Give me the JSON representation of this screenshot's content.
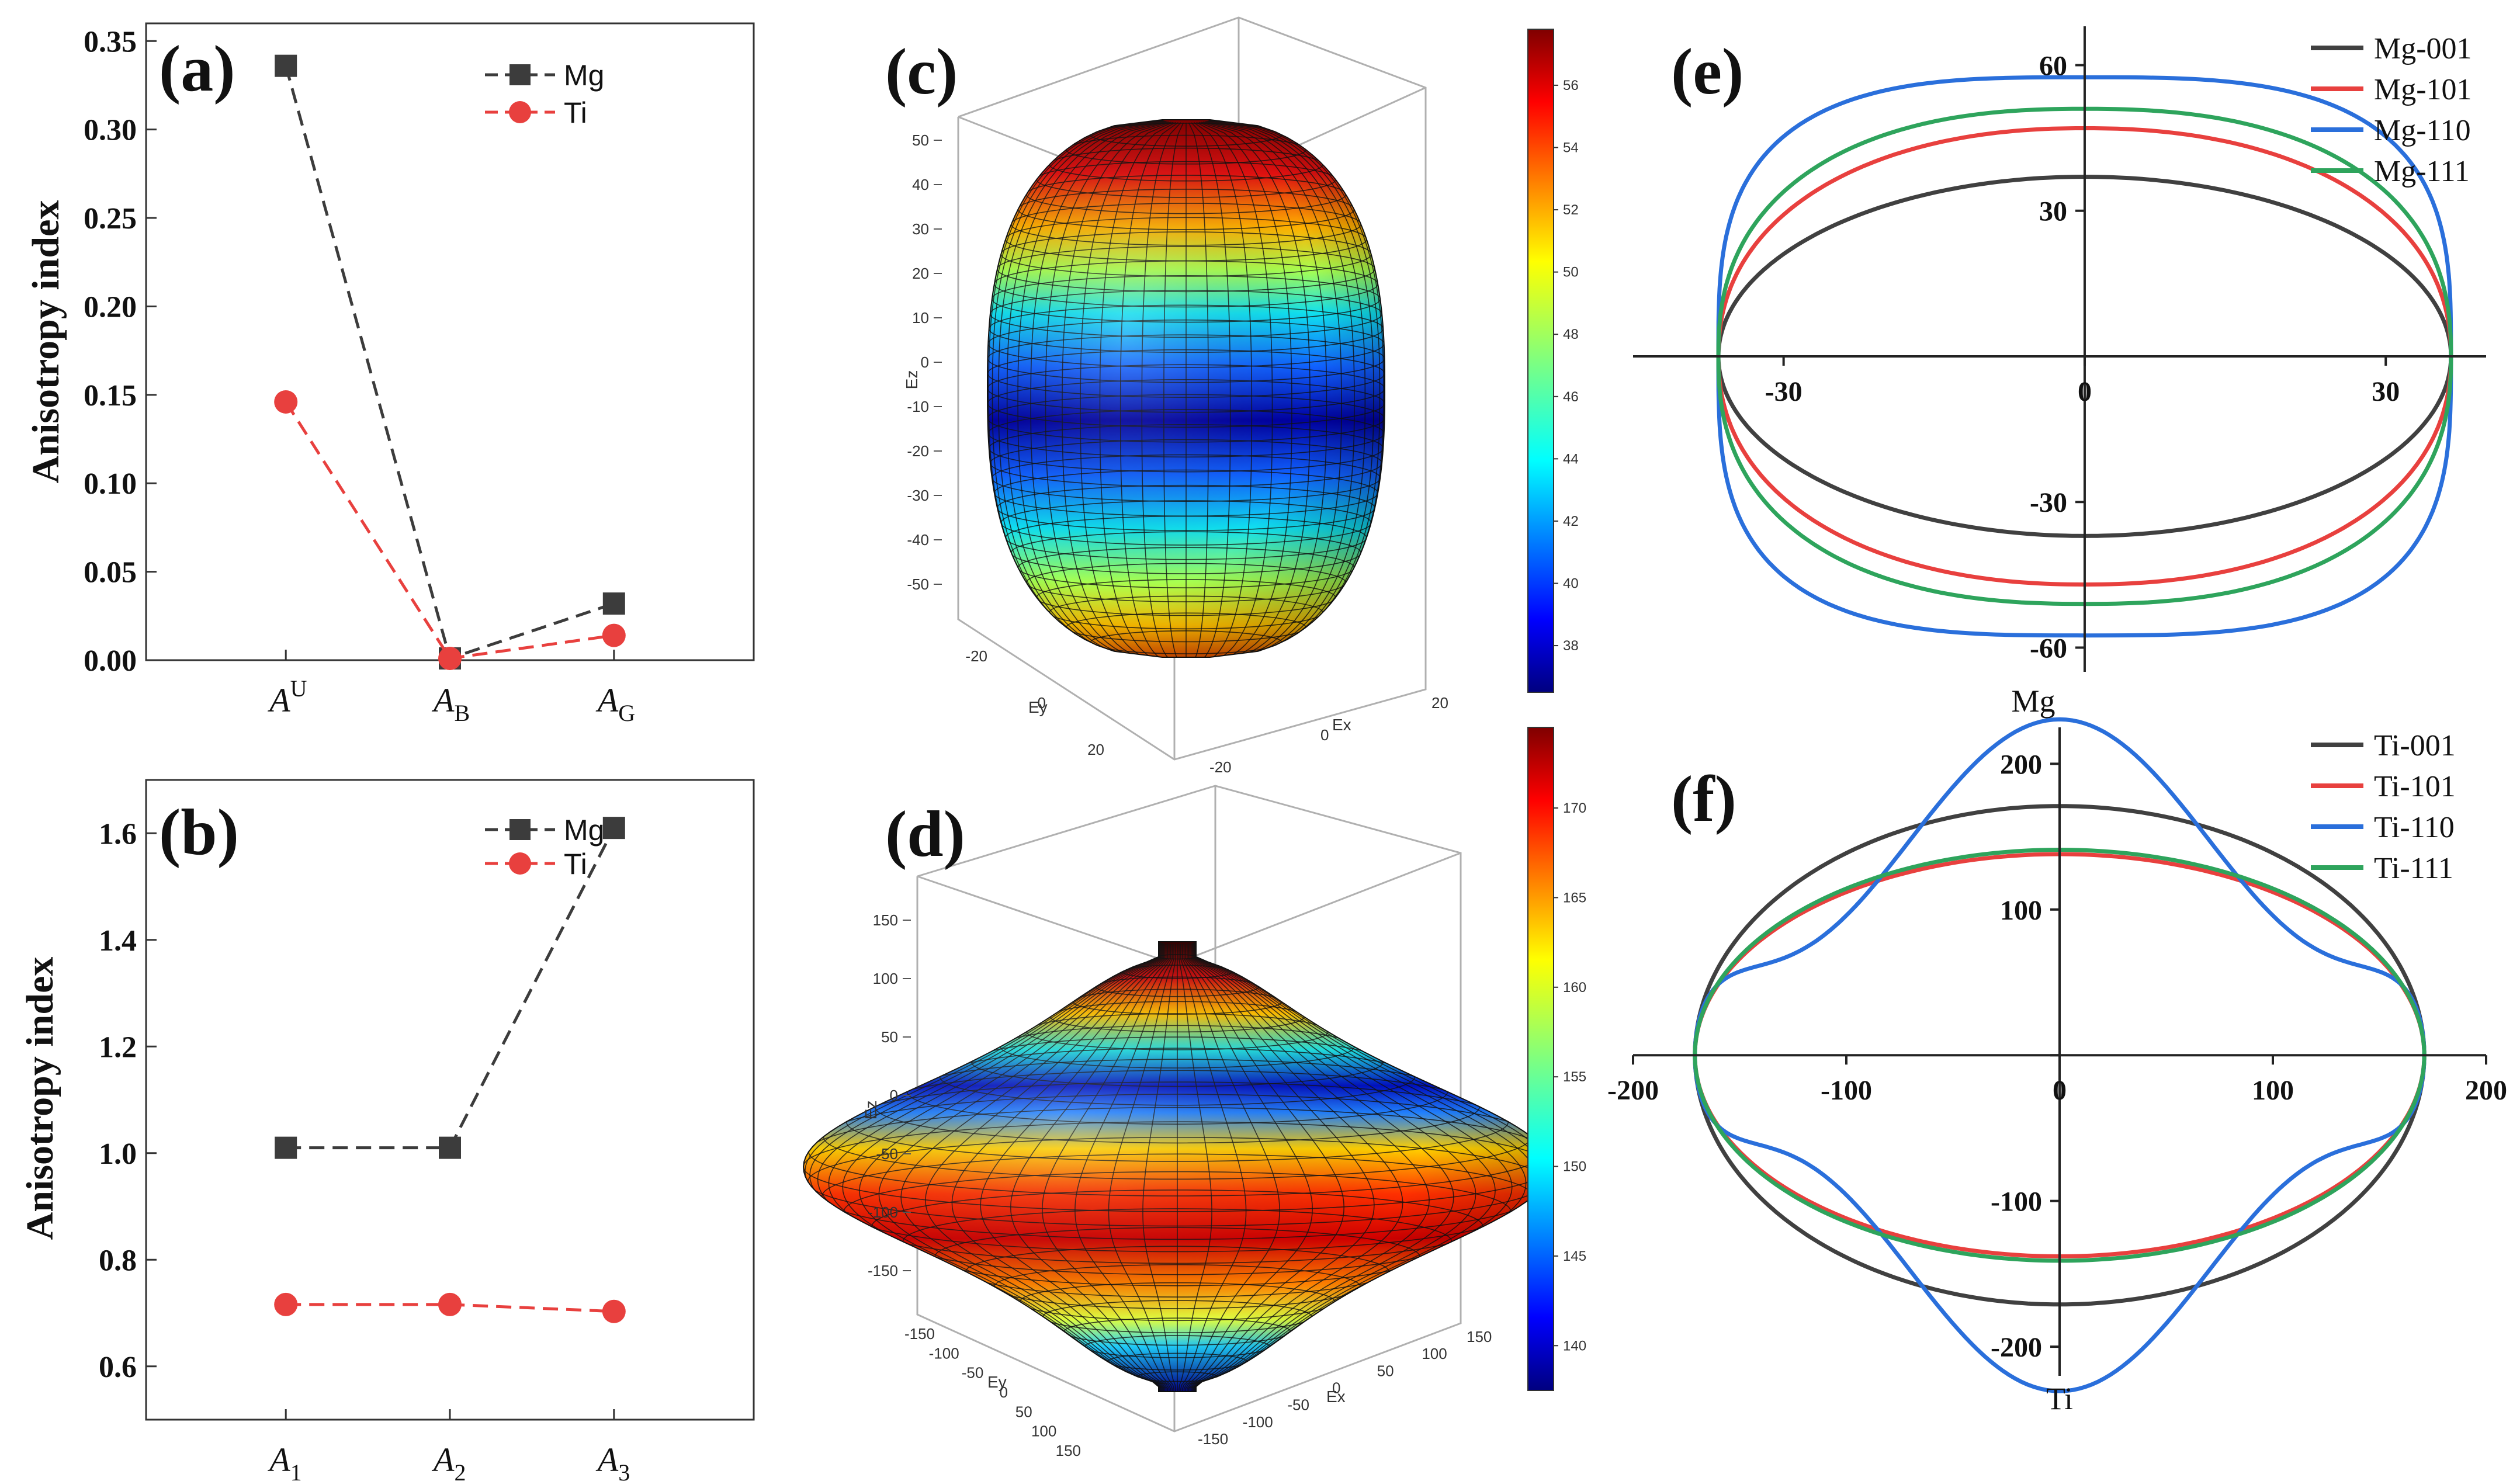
{
  "panels": {
    "a": {
      "letter": "(a)"
    },
    "b": {
      "letter": "(b)"
    },
    "c": {
      "letter": "(c)"
    },
    "d": {
      "letter": "(d)"
    },
    "e": {
      "letter": "(e)"
    },
    "f": {
      "letter": "(f)"
    }
  },
  "colors": {
    "mg_marker": "#3c3c3c",
    "ti_marker": "#e8403e",
    "dir_001": "#404040",
    "dir_101": "#e8403e",
    "dir_110": "#2a6fdb",
    "dir_111": "#2ea45c"
  },
  "chart_data": [
    {
      "panel": "a",
      "type": "line",
      "ylabel": "Anisotropy index",
      "categories": [
        "A^U",
        "A_B",
        "A_G"
      ],
      "category_labels": [
        {
          "main": "A",
          "script": "U",
          "kind": "sup"
        },
        {
          "main": "A",
          "script": "B",
          "kind": "sub"
        },
        {
          "main": "A",
          "script": "G",
          "kind": "sub"
        }
      ],
      "ylim": [
        0,
        0.36
      ],
      "yticks": [
        "0.00",
        "0.05",
        "0.10",
        "0.15",
        "0.20",
        "0.25",
        "0.30",
        "0.35"
      ],
      "ytick_values": [
        0,
        0.05,
        0.1,
        0.15,
        0.2,
        0.25,
        0.3,
        0.35
      ],
      "legend_position": "top-center",
      "series": [
        {
          "name": "Mg",
          "marker": "square",
          "values": [
            0.336,
            0.001,
            0.032
          ]
        },
        {
          "name": "Ti",
          "marker": "circle",
          "values": [
            0.146,
            0.001,
            0.014
          ]
        }
      ]
    },
    {
      "panel": "b",
      "type": "line",
      "ylabel": "Anisotropy index",
      "categories": [
        "A_1",
        "A_2",
        "A_3"
      ],
      "category_labels": [
        {
          "main": "A",
          "script": "1",
          "kind": "sub"
        },
        {
          "main": "A",
          "script": "2",
          "kind": "sub"
        },
        {
          "main": "A",
          "script": "3",
          "kind": "sub"
        }
      ],
      "ylim": [
        0.5,
        1.7
      ],
      "yticks": [
        "0.6",
        "0.8",
        "1.0",
        "1.2",
        "1.4",
        "1.6"
      ],
      "ytick_values": [
        0.6,
        0.8,
        1.0,
        1.2,
        1.4,
        1.6
      ],
      "legend_position": "top-center",
      "series": [
        {
          "name": "Mg",
          "marker": "square",
          "values": [
            1.01,
            1.01,
            1.61
          ]
        },
        {
          "name": "Ti",
          "marker": "circle",
          "values": [
            0.716,
            0.716,
            0.703
          ]
        }
      ]
    },
    {
      "panel": "c",
      "type": "surface3d",
      "axis_labels": {
        "x": "Ex",
        "y": "Ey",
        "z": "Ez"
      },
      "z_ticks": [
        "50",
        "40",
        "30",
        "20",
        "10",
        "0",
        "-10",
        "-20",
        "-30",
        "-40",
        "-50"
      ],
      "z_tick_values": [
        50,
        40,
        30,
        20,
        10,
        0,
        -10,
        -20,
        -30,
        -40,
        -50
      ],
      "x_ticks": [
        "-20",
        "0",
        "20"
      ],
      "y_ticks": [
        "-20",
        "0",
        "20"
      ],
      "colorbar": {
        "ticks": [
          "56",
          "54",
          "52",
          "50",
          "48",
          "46",
          "44",
          "42",
          "40",
          "38"
        ],
        "tick_values": [
          56,
          54,
          52,
          50,
          48,
          46,
          44,
          42,
          40,
          38
        ],
        "range": [
          36.5,
          57.8
        ]
      },
      "extent": {
        "radius_max": 36,
        "z_max": 55
      }
    },
    {
      "panel": "d",
      "type": "surface3d",
      "axis_labels": {
        "x": "Ex",
        "y": "Ey",
        "z": "Ez"
      },
      "z_ticks": [
        "150",
        "100",
        "50",
        "0",
        "-50",
        "-100",
        "-150"
      ],
      "z_tick_values": [
        150,
        100,
        50,
        0,
        -50,
        -100,
        -150
      ],
      "x_ticks": [
        "-150",
        "-100",
        "-50",
        "0",
        "50",
        "100",
        "150"
      ],
      "y_ticks": [
        "-150",
        "-100",
        "-50",
        "0",
        "50",
        "100",
        "150"
      ],
      "colorbar": {
        "ticks": [
          "170",
          "165",
          "160",
          "155",
          "150",
          "145",
          "140"
        ],
        "tick_values": [
          170,
          165,
          160,
          155,
          150,
          145,
          140
        ],
        "range": [
          137.5,
          174.5
        ]
      },
      "extent": {
        "radius_max": 172,
        "z_max": 140
      }
    },
    {
      "panel": "e",
      "type": "polar_2d",
      "center_label": "Mg",
      "xlim": [
        -45,
        40
      ],
      "ylim": [
        -65,
        68
      ],
      "xticks": [
        "-30",
        "0",
        "30"
      ],
      "xtick_values": [
        -30,
        0,
        30
      ],
      "yticks": [
        "60",
        "30",
        "0",
        "-30",
        "-60"
      ],
      "ytick_values": [
        60,
        30,
        0,
        -30,
        -60
      ],
      "legend_position": "top-right",
      "series": [
        {
          "name": "Mg-001",
          "a": 36.5,
          "b": 37.0,
          "shape": 2
        },
        {
          "name": "Mg-101",
          "a": 36.5,
          "b": 47.0,
          "shape": 2.2
        },
        {
          "name": "Mg-110",
          "a": 36.5,
          "b": 57.5,
          "shape": 3.2
        },
        {
          "name": "Mg-111",
          "a": 36.5,
          "b": 51.0,
          "shape": 2.4
        }
      ]
    },
    {
      "panel": "f",
      "type": "polar_2d",
      "center_label": "Ti",
      "xlim": [
        -200,
        200
      ],
      "ylim": [
        -220,
        225
      ],
      "xticks": [
        "-200",
        "-100",
        "0",
        "100",
        "200"
      ],
      "xtick_values": [
        -200,
        -100,
        0,
        100,
        200
      ],
      "yticks": [
        "200",
        "100",
        "0",
        "-100",
        "-200"
      ],
      "ytick_values": [
        200,
        100,
        0,
        -100,
        -200
      ],
      "legend_position": "top-right",
      "series": [
        {
          "name": "Ti-001",
          "a": 171,
          "b": 171,
          "wobble": 0
        },
        {
          "name": "Ti-101",
          "a": 171,
          "b": 138,
          "wobble": 0.02
        },
        {
          "name": "Ti-110",
          "a": 171,
          "b": 172,
          "wobble": 0.34
        },
        {
          "name": "Ti-111",
          "a": 171,
          "b": 141,
          "wobble": 0.03
        }
      ]
    }
  ]
}
